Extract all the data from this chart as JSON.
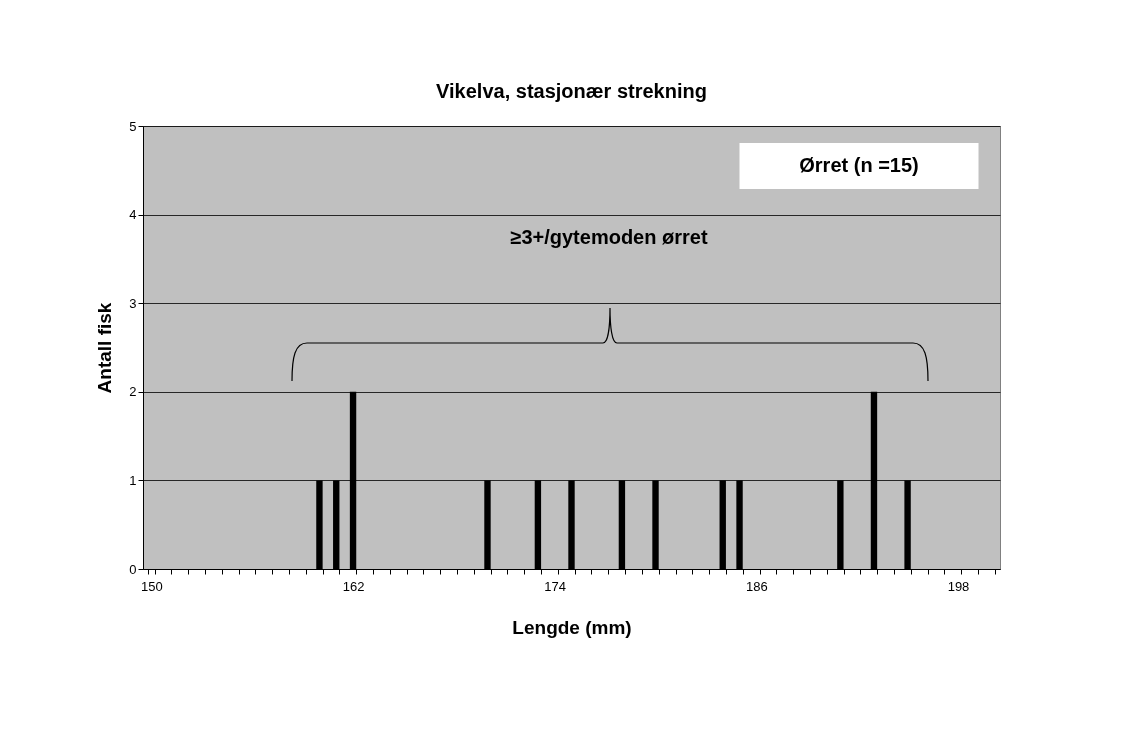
{
  "chart_data": {
    "type": "bar",
    "title": "Vikelva, stasjonær strekning",
    "xlabel": "Lengde (mm)",
    "ylabel": "Antall fisk",
    "categories": [
      "150",
      null,
      null,
      null,
      null,
      null,
      null,
      null,
      null,
      null,
      null,
      null,
      "162",
      null,
      null,
      null,
      null,
      null,
      null,
      null,
      null,
      null,
      null,
      null,
      "174",
      null,
      null,
      null,
      null,
      null,
      null,
      null,
      null,
      null,
      null,
      null,
      "186",
      null,
      null,
      null,
      null,
      null,
      null,
      null,
      null,
      null,
      null,
      null,
      "198",
      null,
      null
    ],
    "values": [
      0,
      0,
      0,
      0,
      0,
      0,
      0,
      0,
      0,
      0,
      1,
      1,
      2,
      0,
      0,
      0,
      0,
      0,
      0,
      0,
      1,
      0,
      0,
      1,
      0,
      1,
      0,
      0,
      1,
      0,
      1,
      0,
      0,
      0,
      1,
      1,
      0,
      0,
      0,
      0,
      0,
      1,
      0,
      2,
      0,
      1,
      0,
      0,
      0,
      0,
      0
    ],
    "color": "#000000",
    "ylim": [
      0,
      5
    ],
    "yticks": [
      0,
      1,
      2,
      3,
      4,
      5
    ],
    "grid": "y",
    "annotations": [
      "Ørret (n =15)",
      "≥3+/gytemoden ørret"
    ]
  }
}
